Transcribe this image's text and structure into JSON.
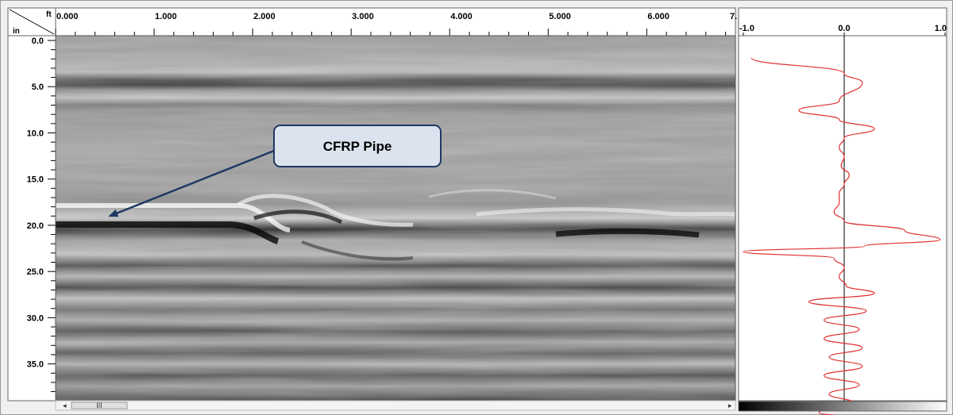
{
  "units": {
    "horizontal": "ft",
    "vertical": "in"
  },
  "scrollbar": {
    "thumb_label": "III"
  },
  "chart_data": [
    {
      "type": "heatmap",
      "title": "",
      "x_unit": "ft",
      "y_unit": "in",
      "x_ticks": [
        "0.000",
        "1.000",
        "2.000",
        "3.000",
        "4.000",
        "5.000",
        "6.000",
        "7."
      ],
      "x_tick_values": [
        0,
        1,
        2,
        3,
        4,
        5,
        6,
        7
      ],
      "xlim": [
        0,
        6.9
      ],
      "y_ticks": [
        "0.0",
        "5.0",
        "10.0",
        "15.0",
        "20.0",
        "25.0",
        "30.0",
        "35.0"
      ],
      "y_tick_values": [
        0,
        5,
        10,
        15,
        20,
        25,
        30,
        35
      ],
      "ylim": [
        0,
        39.5
      ],
      "colormap": "grayscale",
      "annotations": [
        {
          "text": "CFRP Pipe",
          "points_to": {
            "x": 0.55,
            "y": 19.0
          }
        }
      ]
    },
    {
      "type": "line",
      "title": "",
      "x_ticks": [
        "-1.0",
        "0.0",
        "1.0"
      ],
      "x_tick_values": [
        -1,
        0,
        1
      ],
      "xlim": [
        -1,
        1
      ],
      "ylim": [
        0,
        39.5
      ],
      "series": [
        {
          "color": "#e03030",
          "depth": [
            0,
            1.5,
            2.5,
            4.5,
            5.5,
            6.5,
            7.5,
            8.5,
            9.5,
            10.5,
            11.5,
            12.5,
            13.5,
            14.5,
            15.5,
            16.5,
            17.5,
            18.5,
            19.5,
            20.2,
            20.8,
            21.5,
            22.5,
            23.5,
            24.5,
            25.3,
            26.2,
            27.2,
            28.2,
            29.2,
            30.2,
            31.2,
            32.2,
            33.2,
            34.2,
            35.2,
            36.2,
            37.2,
            38.2,
            39.2
          ],
          "amplitude": [
            -0.92,
            0.0,
            0.18,
            -0.05,
            -0.45,
            -0.05,
            0.3,
            0.0,
            -0.05,
            0.0,
            -0.03,
            0.05,
            0.0,
            -0.05,
            -0.05,
            -0.1,
            0.0,
            0.6,
            0.95,
            0.2,
            -1.0,
            -0.1,
            0.0,
            -0.05,
            0.02,
            0.3,
            -0.35,
            0.22,
            -0.2,
            0.15,
            -0.2,
            0.18,
            -0.15,
            0.18,
            -0.2,
            0.15,
            -0.15,
            0.1,
            -0.25,
            0.65
          ]
        }
      ]
    }
  ],
  "colors": {
    "trace": "#e03030",
    "callout_fill": "#dbe3ee",
    "callout_border": "#1f3864",
    "arrow": "#1f3864"
  }
}
